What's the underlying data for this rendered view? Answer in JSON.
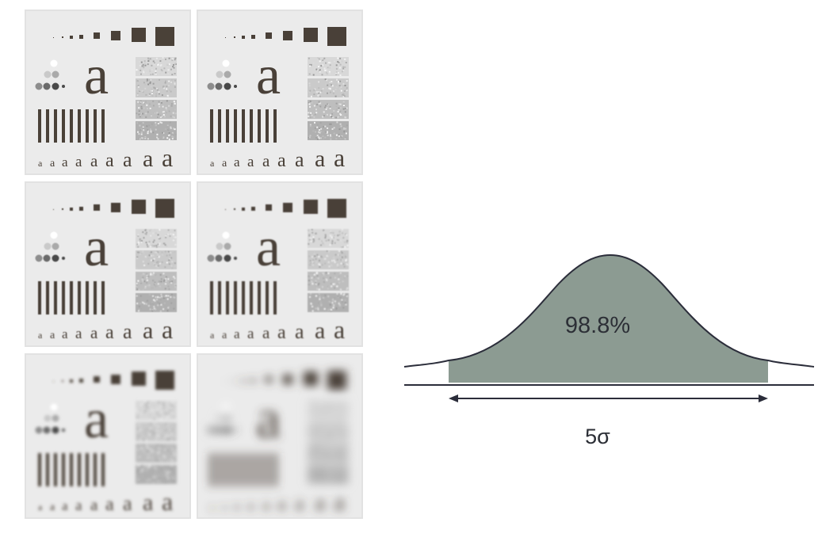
{
  "test_pattern": {
    "glyph": "a",
    "panels": [
      {
        "blur": 0
      },
      {
        "blur": 0.2
      },
      {
        "blur": 0.5
      },
      {
        "blur": 0.9
      },
      {
        "blur": 1.8
      },
      {
        "blur": 5.5
      }
    ]
  },
  "gaussian": {
    "area_label": "98.8%",
    "width_label": "5σ",
    "fill_color": "#8c9b92",
    "line_color": "#2b2d3a"
  },
  "colors": {
    "panel_bg": "#ebebeb",
    "ink": "#4a4138"
  }
}
